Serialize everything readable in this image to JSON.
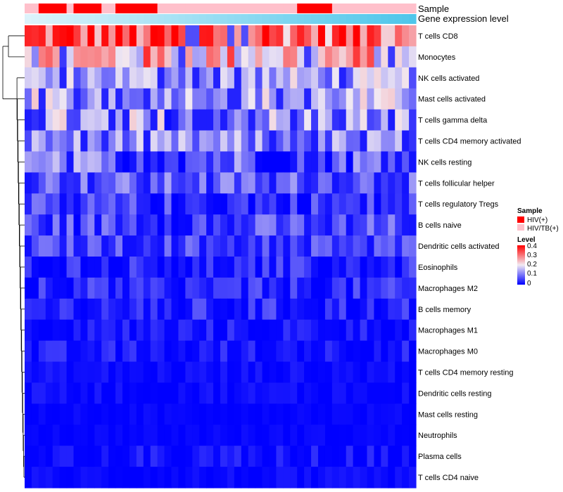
{
  "chart_data": {
    "type": "heatmap",
    "title": "",
    "annotation_tracks": [
      {
        "name": "Sample",
        "categories": [
          "HIV(+)",
          "HIV/TB(+)"
        ]
      },
      {
        "name": "Gene expression level",
        "gradient": [
          "#ddf3fb",
          "#4fc6ea"
        ]
      }
    ],
    "n_columns": 56,
    "sample_groups": [
      1,
      1,
      0,
      0,
      0,
      0,
      1,
      0,
      0,
      0,
      0,
      1,
      1,
      0,
      0,
      0,
      0,
      0,
      0,
      1,
      1,
      1,
      1,
      1,
      1,
      1,
      1,
      1,
      1,
      1,
      1,
      1,
      1,
      1,
      1,
      1,
      1,
      1,
      1,
      0,
      0,
      0,
      0,
      0,
      1,
      1,
      1,
      1,
      1,
      1,
      1,
      1,
      1,
      1,
      1,
      1
    ],
    "rows": [
      "T cells CD8",
      "Monocytes",
      "NK cells activated",
      "Mast cells activated",
      "T cells gamma delta",
      "T cells CD4 memory activated",
      "NK cells resting",
      "T cells follicular helper",
      "T cells regulatory  Tregs",
      "B cells naive",
      "Dendritic cells activated",
      "Eosinophils",
      "Macrophages M2",
      "B cells memory",
      "Macrophages M1",
      "Macrophages M0",
      "T cells CD4 memory resting",
      "Dendritic cells resting",
      "Mast cells resting",
      "Neutrophils",
      "Plasma cells",
      "T cells CD4 naive"
    ],
    "row_mean_levels": [
      0.33,
      0.24,
      0.14,
      0.15,
      0.12,
      0.11,
      0.08,
      0.08,
      0.04,
      0.06,
      0.06,
      0.03,
      0.03,
      0.03,
      0.02,
      0.02,
      0.01,
      0.01,
      0.005,
      0.005,
      0.01,
      0.005
    ],
    "row_spread": [
      0.08,
      0.08,
      0.05,
      0.05,
      0.07,
      0.05,
      0.06,
      0.04,
      0.04,
      0.04,
      0.03,
      0.03,
      0.03,
      0.03,
      0.02,
      0.02,
      0.01,
      0.01,
      0.005,
      0.005,
      0.02,
      0.01
    ],
    "legend": {
      "sample_title": "Sample",
      "sample_items": [
        {
          "label": "HIV(+)",
          "color": "#ff0000"
        },
        {
          "label": "HIV/TB(+)",
          "color": "#ffc0cb"
        }
      ],
      "level_title": "Level",
      "level_ticks": [
        "0.4",
        "0.3",
        "0.2",
        "0.1",
        "0"
      ],
      "level_range": [
        0,
        0.4
      ],
      "colors": {
        "low": "#0000ff",
        "mid": "#f2eaf2",
        "high": "#ff0000"
      }
    }
  }
}
